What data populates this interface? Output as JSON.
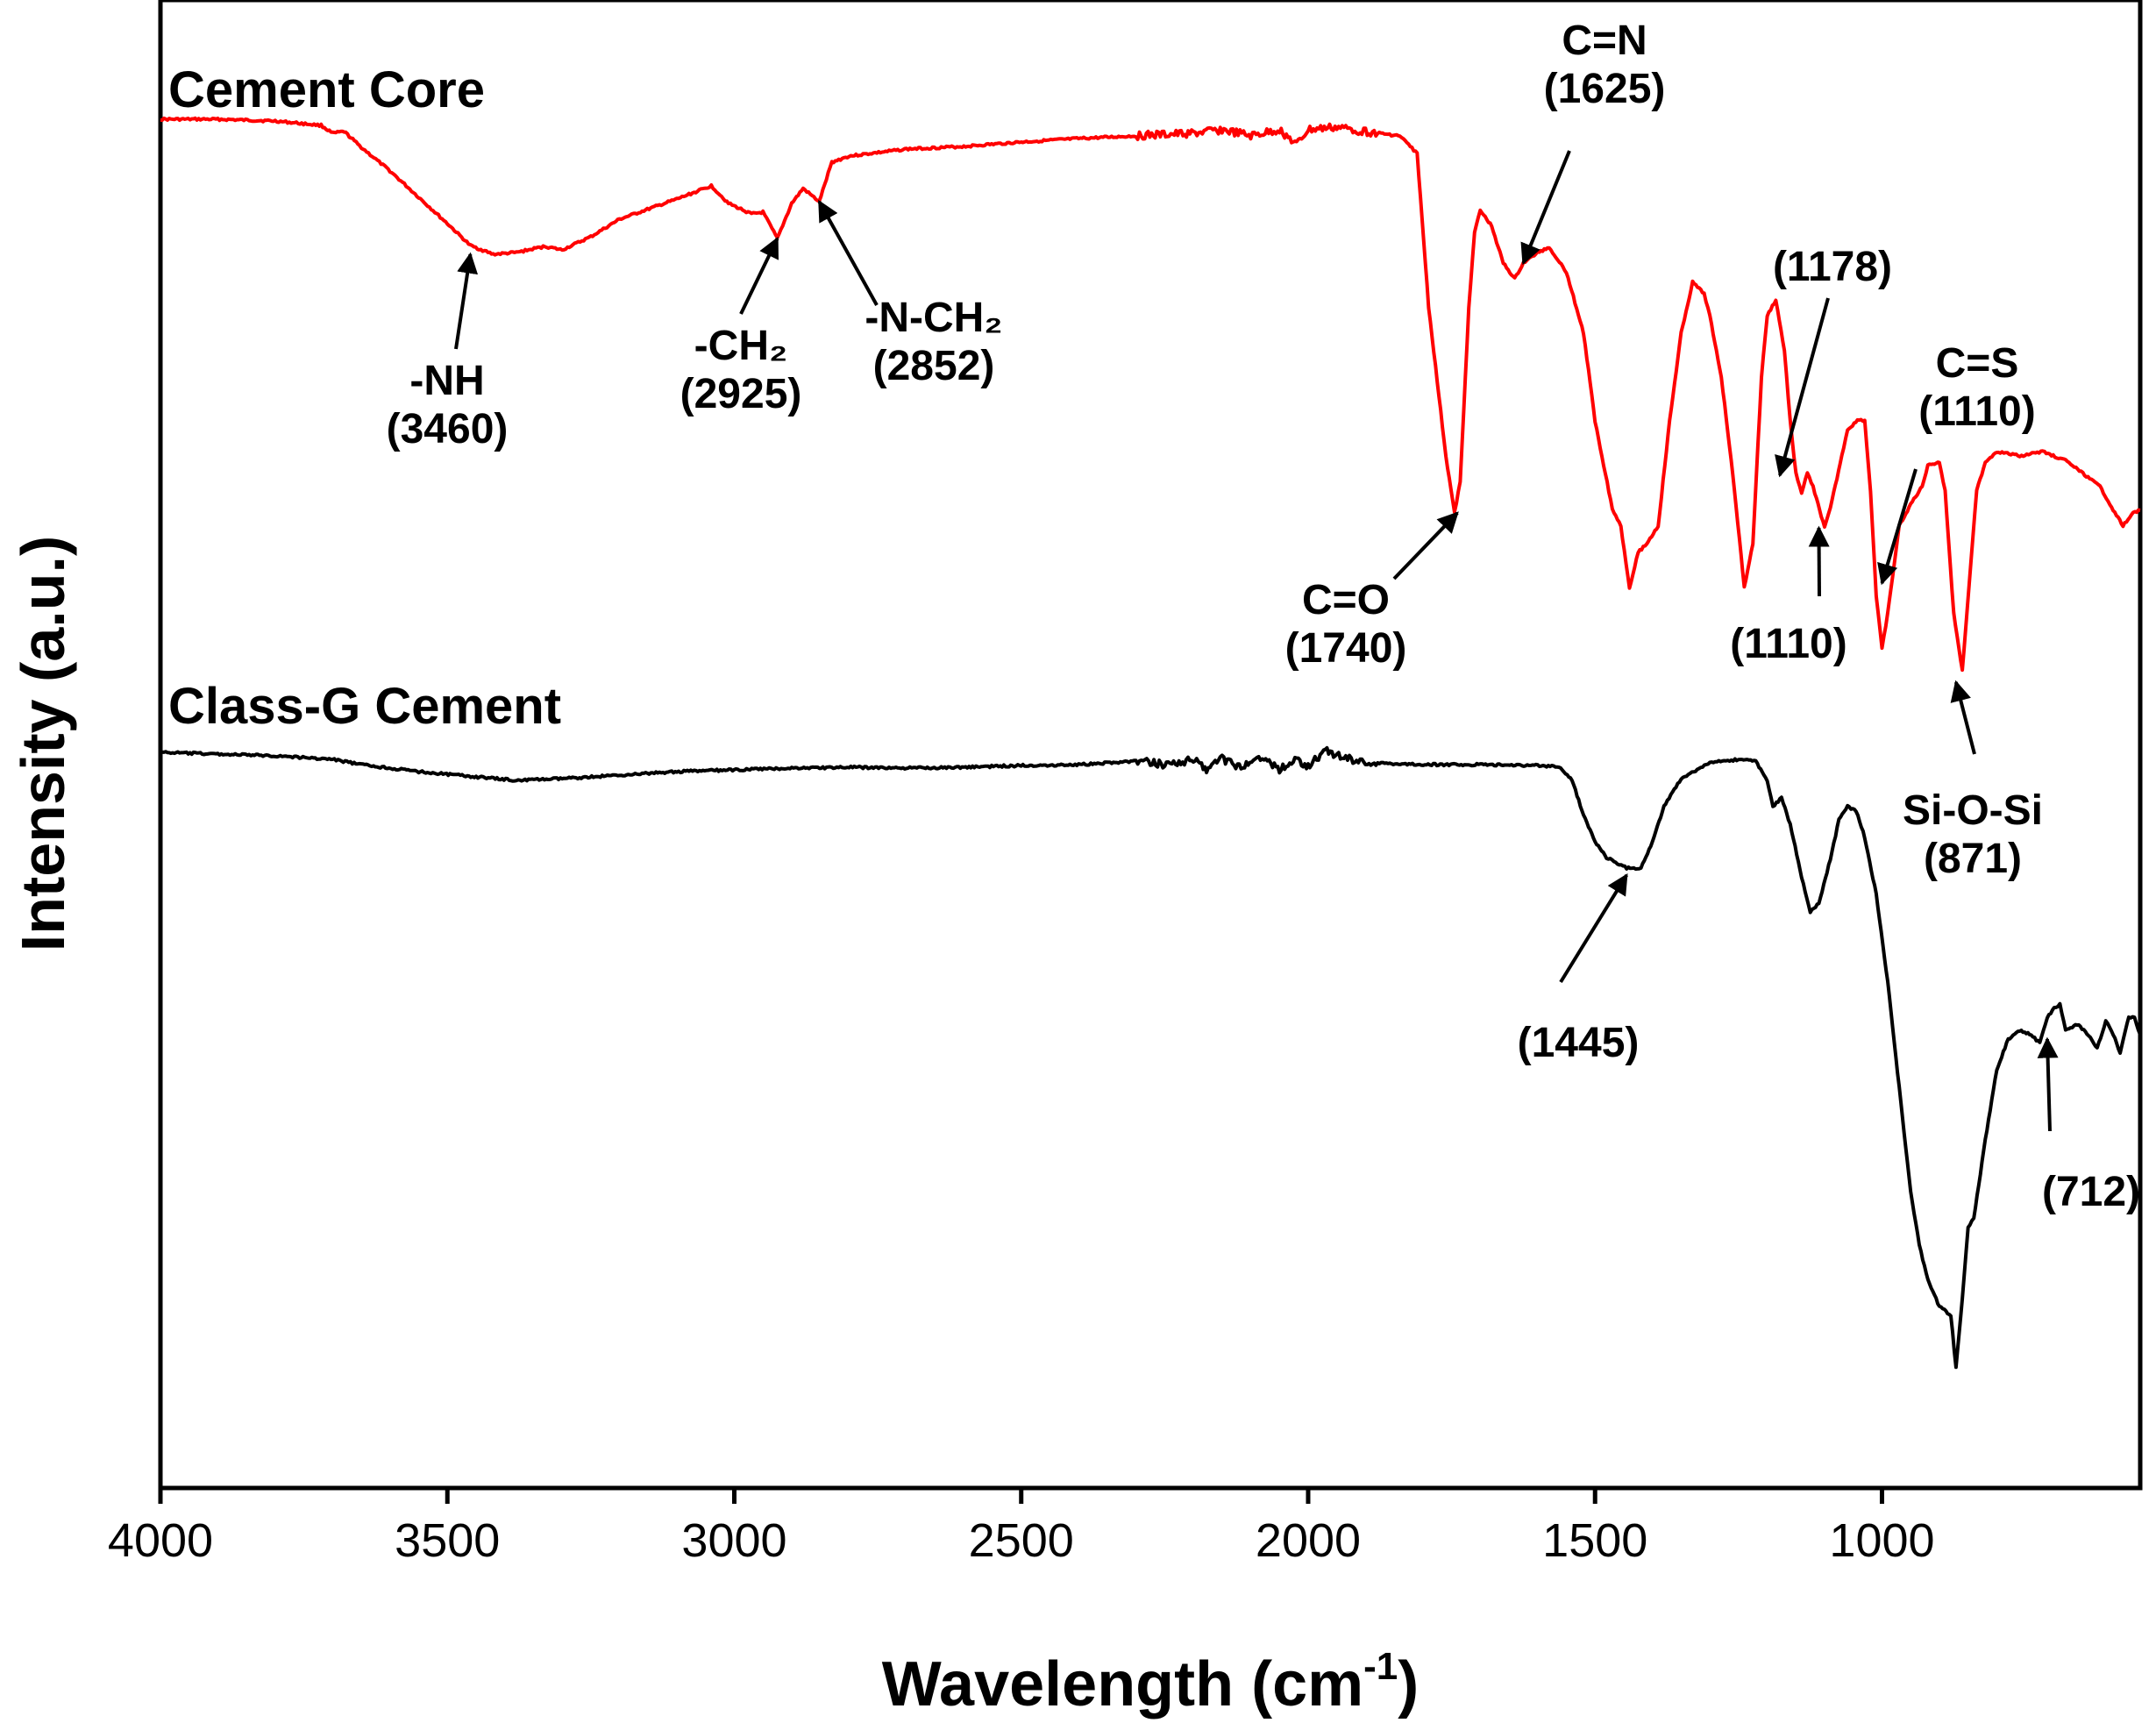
{
  "chart_data": {
    "type": "line",
    "title": "",
    "xlabel": "Wavelength (cm",
    "xlabel_sup": "-1",
    "xlabel_end": ")",
    "ylabel": "Intensity (a.u.)",
    "xlim": [
      4000,
      550
    ],
    "x_ticks": [
      4000,
      3500,
      3000,
      2500,
      2000,
      1500,
      1000
    ],
    "x_tick_labels": [
      "4000",
      "3500",
      "3000",
      "2500",
      "2000",
      "1500",
      "1000"
    ],
    "y_ticks": false,
    "series": [
      {
        "name": "Cement Core",
        "color": "#ff0000",
        "points": [
          [
            4000,
            136
          ],
          [
            3900,
            136
          ],
          [
            3800,
            138
          ],
          [
            3720,
            143
          ],
          [
            3700,
            152
          ],
          [
            3680,
            150
          ],
          [
            3650,
            168
          ],
          [
            3600,
            195
          ],
          [
            3550,
            225
          ],
          [
            3500,
            255
          ],
          [
            3460,
            280
          ],
          [
            3420,
            290
          ],
          [
            3380,
            288
          ],
          [
            3330,
            281
          ],
          [
            3300,
            285
          ],
          [
            3250,
            270
          ],
          [
            3200,
            250
          ],
          [
            3100,
            227
          ],
          [
            3040,
            212
          ],
          [
            3010,
            232
          ],
          [
            2970,
            244
          ],
          [
            2950,
            242
          ],
          [
            2925,
            272
          ],
          [
            2900,
            232
          ],
          [
            2880,
            215
          ],
          [
            2852,
            230
          ],
          [
            2830,
            185
          ],
          [
            2800,
            178
          ],
          [
            2700,
            170
          ],
          [
            2600,
            167
          ],
          [
            2500,
            162
          ],
          [
            2400,
            158
          ],
          [
            2300,
            155
          ],
          [
            2200,
            152
          ],
          [
            2150,
            148
          ],
          [
            2100,
            155
          ],
          [
            2050,
            148
          ],
          [
            2020,
            165
          ],
          [
            2000,
            148
          ],
          [
            1950,
            145
          ],
          [
            1900,
            150
          ],
          [
            1840,
            155
          ],
          [
            1810,
            175
          ],
          [
            1790,
            350
          ],
          [
            1760,
            520
          ],
          [
            1745,
            585
          ],
          [
            1735,
            550
          ],
          [
            1720,
            350
          ],
          [
            1710,
            265
          ],
          [
            1700,
            240
          ],
          [
            1680,
            258
          ],
          [
            1660,
            300
          ],
          [
            1640,
            318
          ],
          [
            1625,
            300
          ],
          [
            1600,
            288
          ],
          [
            1580,
            282
          ],
          [
            1550,
            310
          ],
          [
            1520,
            380
          ],
          [
            1500,
            480
          ],
          [
            1470,
            580
          ],
          [
            1455,
            600
          ],
          [
            1440,
            670
          ],
          [
            1425,
            630
          ],
          [
            1410,
            620
          ],
          [
            1390,
            600
          ],
          [
            1370,
            480
          ],
          [
            1350,
            380
          ],
          [
            1330,
            322
          ],
          [
            1310,
            335
          ],
          [
            1300,
            360
          ],
          [
            1280,
            430
          ],
          [
            1260,
            540
          ],
          [
            1240,
            670
          ],
          [
            1225,
            620
          ],
          [
            1210,
            430
          ],
          [
            1200,
            360
          ],
          [
            1185,
            342
          ],
          [
            1170,
            400
          ],
          [
            1160,
            480
          ],
          [
            1150,
            540
          ],
          [
            1140,
            562
          ],
          [
            1130,
            540
          ],
          [
            1120,
            555
          ],
          [
            1100,
            602
          ],
          [
            1090,
            580
          ],
          [
            1070,
            520
          ],
          [
            1060,
            490
          ],
          [
            1040,
            478
          ],
          [
            1030,
            480
          ],
          [
            1020,
            560
          ],
          [
            1010,
            680
          ],
          [
            1000,
            740
          ],
          [
            990,
            700
          ],
          [
            970,
            600
          ],
          [
            950,
            575
          ],
          [
            930,
            555
          ],
          [
            920,
            530
          ],
          [
            900,
            527
          ],
          [
            890,
            560
          ],
          [
            875,
            700
          ],
          [
            860,
            765
          ],
          [
            845,
            640
          ],
          [
            835,
            560
          ],
          [
            820,
            527
          ],
          [
            800,
            515
          ],
          [
            760,
            520
          ],
          [
            720,
            515
          ],
          [
            680,
            525
          ],
          [
            650,
            540
          ],
          [
            620,
            555
          ],
          [
            600,
            578
          ],
          [
            580,
            600
          ],
          [
            565,
            586
          ],
          [
            550,
            582
          ]
        ]
      },
      {
        "name": "Class-G Cement",
        "color": "#000000",
        "points": [
          [
            4000,
            858
          ],
          [
            3900,
            860
          ],
          [
            3800,
            862
          ],
          [
            3700,
            866
          ],
          [
            3650,
            872
          ],
          [
            3550,
            880
          ],
          [
            3450,
            886
          ],
          [
            3380,
            890
          ],
          [
            3300,
            888
          ],
          [
            3200,
            884
          ],
          [
            3100,
            880
          ],
          [
            3000,
            878
          ],
          [
            2900,
            876
          ],
          [
            2800,
            875
          ],
          [
            2700,
            876
          ],
          [
            2600,
            875
          ],
          [
            2500,
            873
          ],
          [
            2400,
            872
          ],
          [
            2300,
            868
          ],
          [
            2250,
            872
          ],
          [
            2200,
            866
          ],
          [
            2180,
            878
          ],
          [
            2150,
            865
          ],
          [
            2120,
            875
          ],
          [
            2080,
            862
          ],
          [
            2050,
            878
          ],
          [
            2020,
            866
          ],
          [
            2000,
            874
          ],
          [
            1970,
            856
          ],
          [
            1950,
            862
          ],
          [
            1900,
            870
          ],
          [
            1800,
            872
          ],
          [
            1700,
            872
          ],
          [
            1600,
            873
          ],
          [
            1560,
            875
          ],
          [
            1540,
            890
          ],
          [
            1520,
            930
          ],
          [
            1500,
            960
          ],
          [
            1480,
            978
          ],
          [
            1445,
            990
          ],
          [
            1420,
            990
          ],
          [
            1400,
            960
          ],
          [
            1380,
            920
          ],
          [
            1350,
            888
          ],
          [
            1300,
            870
          ],
          [
            1250,
            866
          ],
          [
            1220,
            868
          ],
          [
            1200,
            890
          ],
          [
            1190,
            920
          ],
          [
            1175,
            910
          ],
          [
            1160,
            940
          ],
          [
            1140,
            1000
          ],
          [
            1125,
            1040
          ],
          [
            1110,
            1030
          ],
          [
            1090,
            980
          ],
          [
            1075,
            935
          ],
          [
            1060,
            920
          ],
          [
            1045,
            925
          ],
          [
            1030,
            955
          ],
          [
            1010,
            1020
          ],
          [
            990,
            1120
          ],
          [
            970,
            1240
          ],
          [
            950,
            1360
          ],
          [
            935,
            1420
          ],
          [
            920,
            1460
          ],
          [
            900,
            1490
          ],
          [
            880,
            1500
          ],
          [
            871,
            1560
          ],
          [
            860,
            1480
          ],
          [
            850,
            1400
          ],
          [
            840,
            1390
          ],
          [
            820,
            1300
          ],
          [
            800,
            1220
          ],
          [
            780,
            1185
          ],
          [
            760,
            1175
          ],
          [
            740,
            1180
          ],
          [
            725,
            1190
          ],
          [
            712,
            1160
          ],
          [
            700,
            1150
          ],
          [
            690,
            1145
          ],
          [
            680,
            1175
          ],
          [
            660,
            1168
          ],
          [
            640,
            1180
          ],
          [
            625,
            1195
          ],
          [
            610,
            1165
          ],
          [
            600,
            1175
          ],
          [
            585,
            1200
          ],
          [
            570,
            1160
          ],
          [
            560,
            1160
          ],
          [
            550,
            1180
          ]
        ]
      }
    ],
    "annotations": [
      {
        "lines": [
          "-NH",
          "(3460)"
        ],
        "x": 3460,
        "arrow_to_y": 290
      },
      {
        "lines": [
          "-CH₂",
          "(2925)"
        ],
        "x": 2925,
        "arrow_to_y": 272
      },
      {
        "lines": [
          "-N-CH₂",
          "(2852)"
        ],
        "x": 2852,
        "arrow_to_y": 230
      },
      {
        "lines": [
          "C=O",
          "(1740)"
        ],
        "x": 1740,
        "arrow_to_y": 585
      },
      {
        "lines": [
          "C=N",
          "(1625)"
        ],
        "x": 1625,
        "arrow_to_y": 300
      },
      {
        "lines": [
          "(1178)"
        ],
        "x": 1178,
        "arrow_to_y": 542
      },
      {
        "lines": [
          "(1110)"
        ],
        "x": 1110,
        "arrow_to_y": 602
      },
      {
        "lines": [
          "C=S",
          "(1110)"
        ],
        "x": 1000,
        "arrow_to_y": 665
      },
      {
        "lines": [
          "Si-O-Si",
          "(871)"
        ],
        "x": 871,
        "arrow_to_y": 778
      },
      {
        "lines": [
          "(1445)"
        ],
        "x": 1445,
        "arrow_to_y": 998
      },
      {
        "lines": [
          "(712)"
        ],
        "x": 712,
        "arrow_to_y": 1185
      }
    ]
  }
}
